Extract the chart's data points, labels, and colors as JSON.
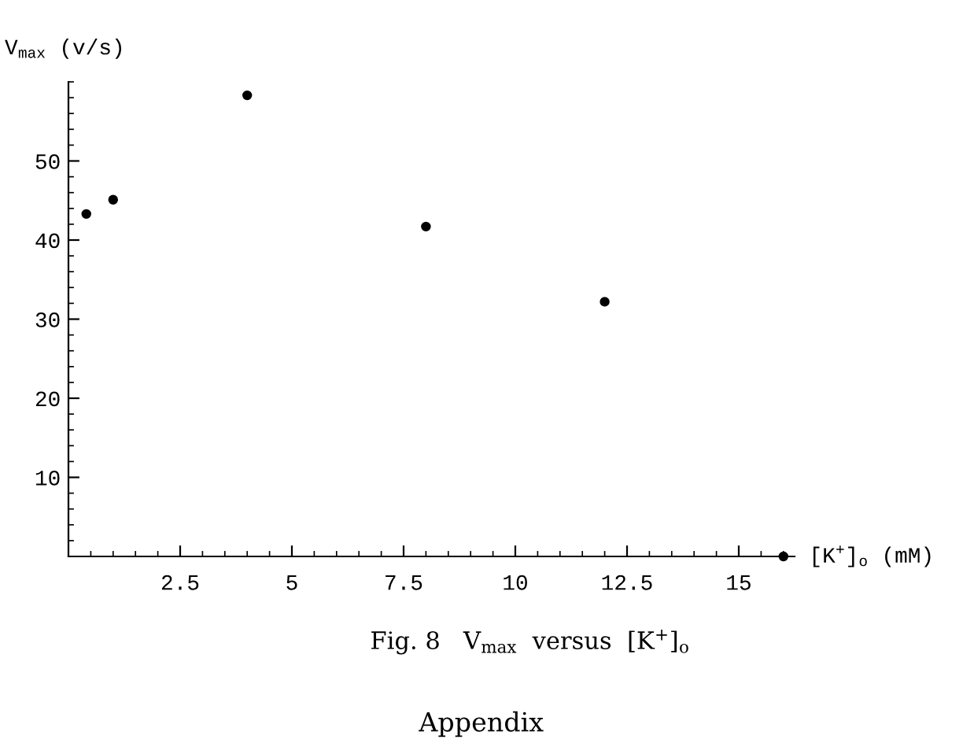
{
  "chart_data": {
    "type": "scatter",
    "xlabel": "[K$^{+}$]$_{o}$ (mM)",
    "ylabel": "V$_{max}$ (v/s)",
    "x": [
      0.4,
      1.0,
      4.0,
      8.0,
      12.0,
      16.0
    ],
    "series": [
      {
        "color": "#000000",
        "values": [
          43.3,
          45.1,
          58.3,
          41.7,
          32.2,
          0
        ]
      }
    ],
    "xlim": [
      0,
      16.25
    ],
    "ylim": [
      0,
      60
    ],
    "xticks": [
      2.5,
      5,
      7.5,
      10,
      12.5,
      15
    ],
    "yticks": [
      10,
      20,
      30,
      40,
      50
    ],
    "marker": "circle",
    "grid": false,
    "legend": false,
    "annotations": [
      "Fig. 8   V$_{max}$  versus  [K$^{+}$]$_{o}$",
      "Appendix"
    ]
  }
}
